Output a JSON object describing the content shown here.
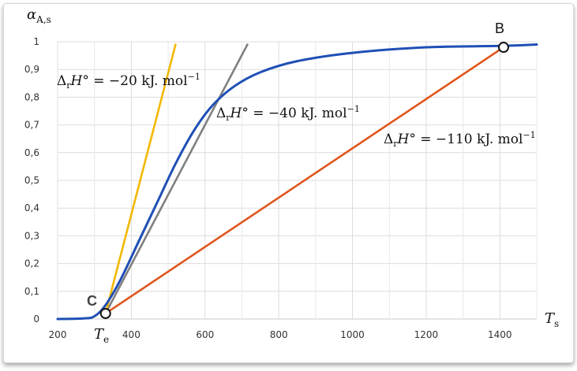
{
  "chart_data": {
    "type": "line",
    "xlabel": "T",
    "xlabel_sub": "s",
    "ylabel": "α",
    "ylabel_sub": "A,s",
    "xlim": [
      200,
      1500
    ],
    "ylim": [
      0,
      1
    ],
    "x_ticks": [
      "200",
      "400",
      "600",
      "800",
      "1000",
      "1200",
      "1400"
    ],
    "y_ticks": [
      "0",
      "0,1",
      "0,2",
      "0,3",
      "0,4",
      "0,5",
      "0,6",
      "0,7",
      "0,8",
      "0,9",
      "1"
    ],
    "grid": true,
    "series": [
      {
        "color": "#1f4fb5",
        "points": [
          [
            200,
            0
          ],
          [
            270,
            0.002
          ],
          [
            300,
            0.01
          ],
          [
            330,
            0.05
          ],
          [
            370,
            0.14
          ],
          [
            420,
            0.28
          ],
          [
            470,
            0.42
          ],
          [
            520,
            0.56
          ],
          [
            570,
            0.68
          ],
          [
            620,
            0.77
          ],
          [
            680,
            0.84
          ],
          [
            750,
            0.89
          ],
          [
            850,
            0.93
          ],
          [
            1000,
            0.96
          ],
          [
            1200,
            0.98
          ],
          [
            1400,
            0.985
          ],
          [
            1500,
            0.99
          ]
        ]
      },
      {
        "color": "#f2b800",
        "points": [
          [
            330,
            0.02
          ],
          [
            520,
            0.99
          ]
        ]
      },
      {
        "color": "#808080",
        "points": [
          [
            330,
            0.02
          ],
          [
            715,
            0.99
          ]
        ]
      },
      {
        "color": "#e0561c",
        "points": [
          [
            330,
            0.02
          ],
          [
            1410,
            0.98
          ]
        ]
      }
    ],
    "annotations": [
      {
        "text_prefix": "Δ",
        "text_sub": "r",
        "text_var": "H",
        "text_rest": "° = −20 kJ. mol",
        "text_sup": "−1"
      },
      {
        "text_prefix": "Δ",
        "text_sub": "r",
        "text_var": "H",
        "text_rest": "° = −40 kJ. mol",
        "text_sup": "−1"
      },
      {
        "text_prefix": "Δ",
        "text_sub": "r",
        "text_var": "H",
        "text_rest": "° = −110 kJ. mol",
        "text_sup": "−1"
      }
    ],
    "points": [
      {
        "label": "B",
        "x": 1410,
        "y": 0.98
      },
      {
        "label": "C",
        "x": 330,
        "y": 0.02,
        "sublabel": "T",
        "sublabel_sub": "e"
      }
    ]
  }
}
